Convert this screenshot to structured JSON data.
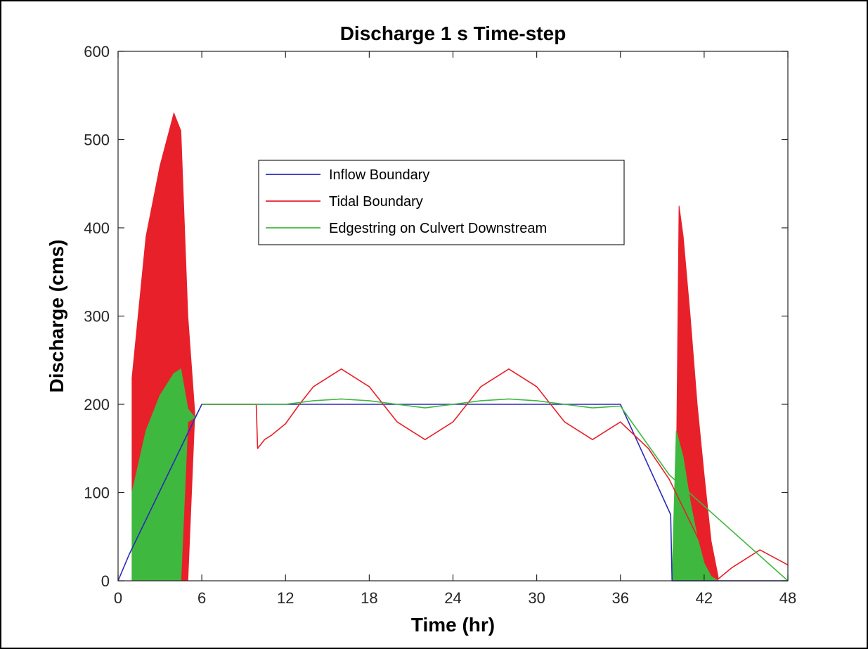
{
  "chart_data": {
    "type": "line",
    "title": "Discharge 1 s Time-step",
    "xlabel": "Time (hr)",
    "ylabel": "Discharge (cms)",
    "xlim": [
      0,
      48
    ],
    "ylim": [
      0,
      600
    ],
    "xticks": [
      0,
      6,
      12,
      18,
      24,
      30,
      36,
      42,
      48
    ],
    "yticks": [
      0,
      100,
      200,
      300,
      400,
      500,
      600
    ],
    "grid": false,
    "legend_position": "upper-center",
    "series": [
      {
        "name": "Inflow Boundary",
        "color": "#2b2bb8",
        "style": "line",
        "x": [
          0,
          0.8,
          6,
          36,
          39.6,
          39.7,
          48
        ],
        "y": [
          0,
          30,
          200,
          200,
          75,
          0,
          0
        ]
      },
      {
        "name": "Tidal Boundary",
        "color": "#e8202a",
        "style": "line",
        "x": [
          6,
          9.9,
          10,
          10.5,
          11,
          12,
          13,
          14,
          16,
          18,
          20,
          22,
          24,
          26,
          28,
          30,
          32,
          34,
          36,
          38,
          39.5,
          43,
          44,
          46,
          48
        ],
        "y": [
          200,
          200,
          150,
          160,
          165,
          178,
          200,
          220,
          240,
          220,
          180,
          160,
          180,
          220,
          240,
          220,
          180,
          160,
          180,
          150,
          115,
          2,
          15,
          35,
          18
        ],
        "oscillation_envelope": [
          {
            "x": [
              1,
              2,
              3,
              4,
              4.5,
              5,
              5.5
            ],
            "upper": [
              230,
              390,
              470,
              530,
              510,
              300,
              190
            ],
            "lower": [
              100,
              150,
              180,
              210,
              0,
              0,
              190
            ]
          },
          {
            "x": [
              40,
              40.2,
              40.5,
              41,
              41.5,
              42,
              42.5,
              43
            ],
            "upper": [
              110,
              425,
              390,
              300,
              200,
              120,
              45,
              5
            ],
            "lower": [
              70,
              0,
              0,
              0,
              0,
              0,
              0,
              0
            ]
          }
        ]
      },
      {
        "name": "Edgestring on Culvert Downstream",
        "color": "#3fb83f",
        "style": "line",
        "x": [
          6,
          10,
          12,
          14,
          16,
          18,
          20,
          22,
          24,
          26,
          28,
          30,
          32,
          34,
          36,
          39.5,
          48
        ],
        "y": [
          200,
          200,
          200,
          204,
          206,
          204,
          200,
          196,
          200,
          204,
          206,
          204,
          200,
          196,
          198,
          120,
          0
        ],
        "oscillation_envelope": [
          {
            "x": [
              1,
              2,
              3,
              4,
              4.5,
              5,
              5.5,
              6
            ],
            "upper": [
              100,
              170,
              210,
              235,
              240,
              195,
              185,
              200
            ],
            "lower": [
              0,
              0,
              0,
              0,
              0,
              180,
              185,
              200
            ]
          },
          {
            "x": [
              39.7,
              40,
              40.5,
              41,
              41.5,
              42,
              42.5,
              43
            ],
            "upper": [
              0,
              170,
              140,
              90,
              50,
              20,
              5,
              0
            ],
            "lower": [
              0,
              0,
              0,
              0,
              0,
              0,
              0,
              0
            ]
          }
        ]
      }
    ]
  }
}
